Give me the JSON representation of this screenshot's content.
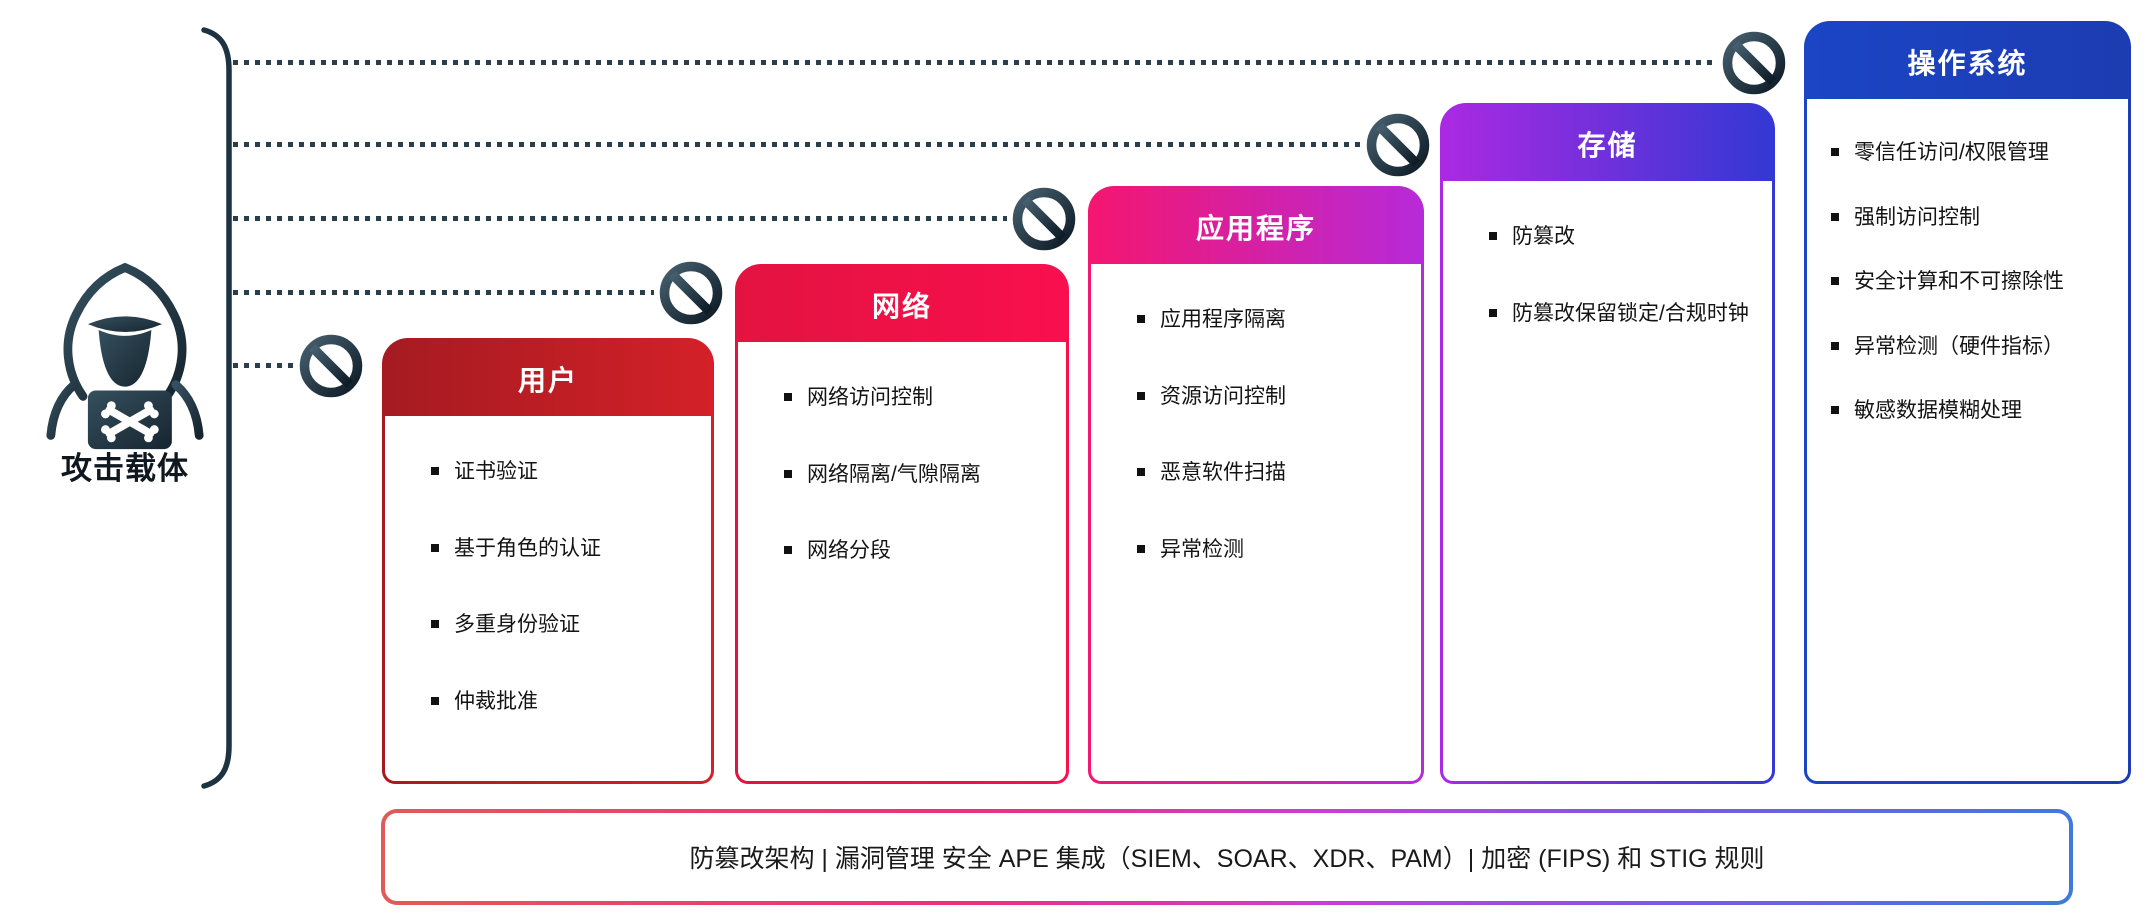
{
  "attacker": {
    "label": "攻击载体",
    "icon": "hacker-icon"
  },
  "layers": [
    {
      "id": "user",
      "title": "用户",
      "items": [
        "证书验证",
        "基于角色的认证",
        "多重身份验证",
        "仲裁批准"
      ],
      "gradient": [
        "#a51b21",
        "#d42028"
      ]
    },
    {
      "id": "network",
      "title": "网络",
      "items": [
        "网络访问控制",
        "网络隔离/气隙隔离",
        "网络分段"
      ],
      "gradient": [
        "#e31340",
        "#f90f4e"
      ]
    },
    {
      "id": "application",
      "title": "应用程序",
      "items": [
        "应用程序隔离",
        "资源访问控制",
        "恶意软件扫描",
        "异常检测"
      ],
      "gradient": [
        "#f41670",
        "#b72ad8"
      ]
    },
    {
      "id": "storage",
      "title": "存储",
      "items": [
        "防篡改",
        "防篡改保留锁定/合规时钟"
      ],
      "gradient": [
        "#ab29e2",
        "#3338d4"
      ]
    },
    {
      "id": "os",
      "title": "操作系统",
      "items": [
        "零信任访问/权限管理",
        "强制访问控制",
        "安全计算和不可擦除性",
        "异常检测（硬件指标）",
        "敏感数据模糊处理"
      ],
      "gradient": [
        "#1b45c5",
        "#1c3cb2"
      ]
    }
  ],
  "footer": {
    "text": "防篡改架构 | 漏洞管理 安全 APE 集成（SIEM、SOAR、XDR、PAM）| 加密 (FIPS) 和 STIG 规则"
  },
  "icons": {
    "attacker": "hacker-icon",
    "blocked": "no-entry-icon",
    "bullet": "square-bullet-icon"
  },
  "colors": {
    "ink": "#22374a",
    "dotted_line": "#2b3e4c",
    "body_text": "#141414",
    "background": "#ffffff"
  }
}
